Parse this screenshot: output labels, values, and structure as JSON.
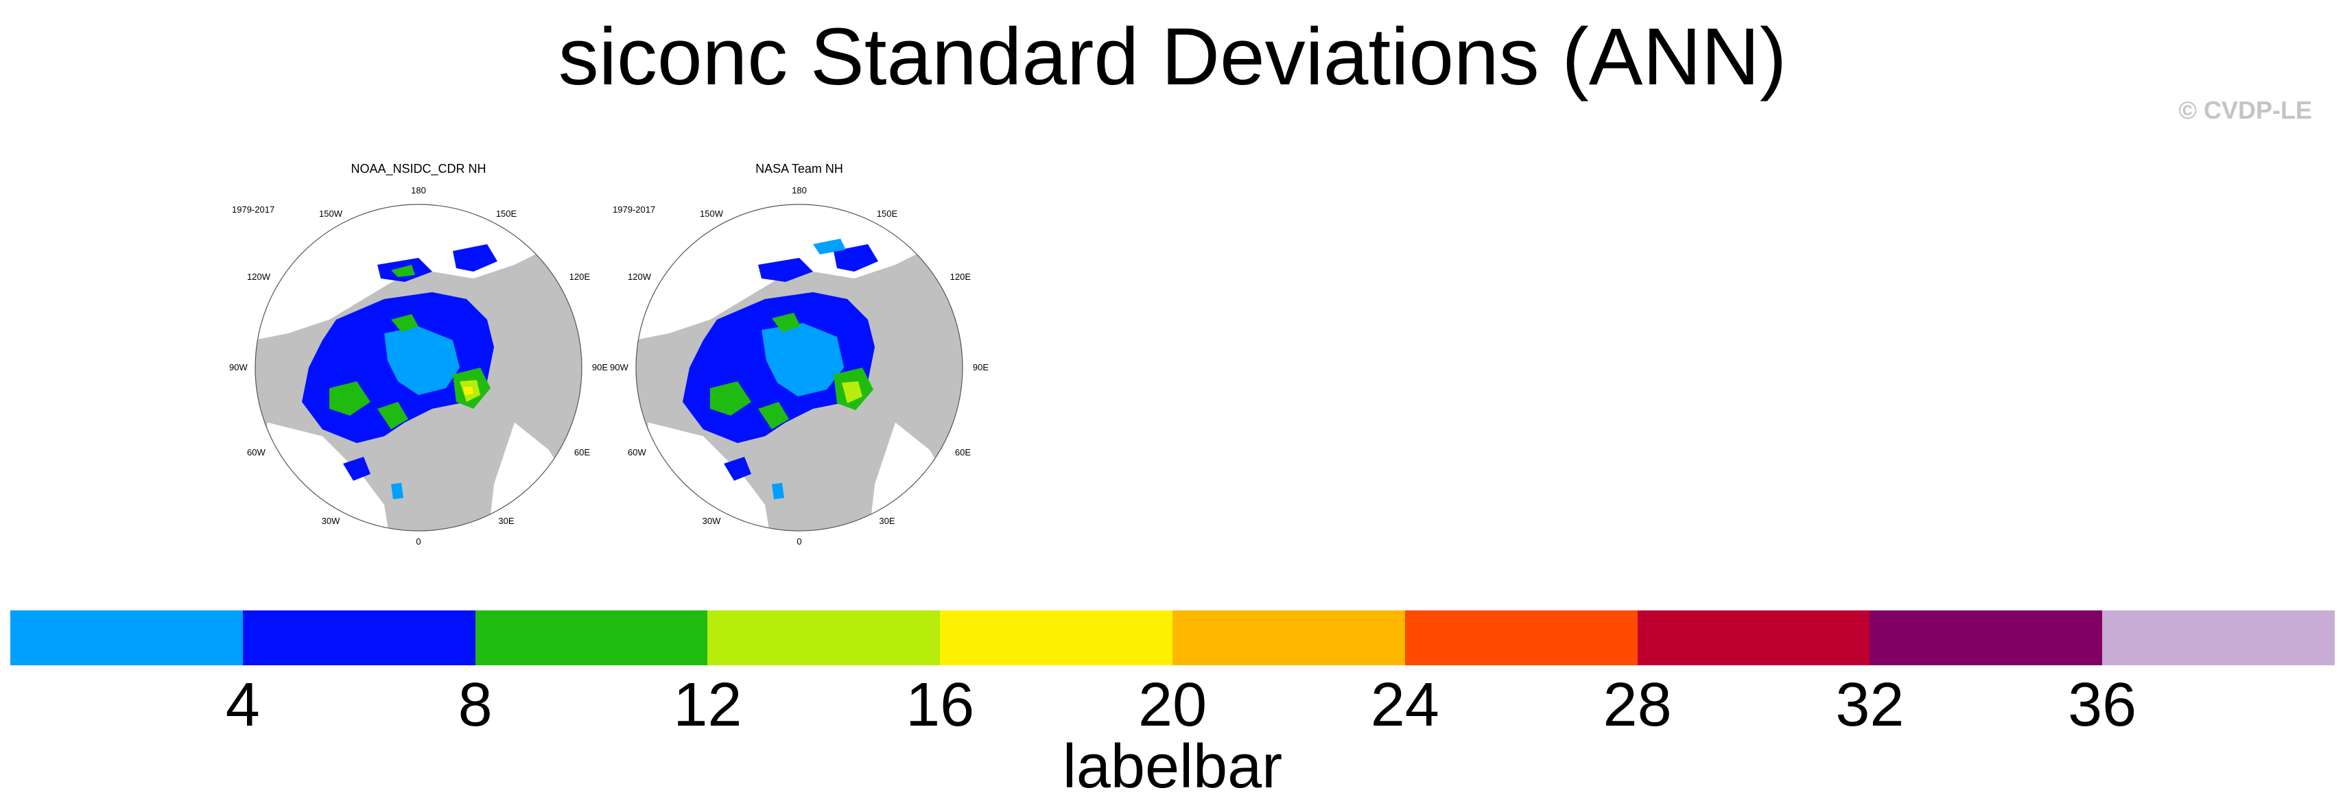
{
  "title": "siconc Standard Deviations (ANN)",
  "credit": "© CVDP-LE",
  "panels": [
    {
      "title": "NOAA_NSIDC_CDR NH",
      "period": "1979-2017"
    },
    {
      "title": "NASA Team NH",
      "period": "1979-2017"
    }
  ],
  "longitude_labels": {
    "top": "180",
    "bottom": "0",
    "left": "90W",
    "right": "90E",
    "upper_left_1": "150W",
    "upper_left_2": "120W",
    "upper_right_1": "150E",
    "upper_right_2": "120E",
    "lower_left_1": "60W",
    "lower_left_2": "30W",
    "lower_right_1": "60E",
    "lower_right_2": "30E"
  },
  "labelbar": {
    "title": "labelbar",
    "ticks": [
      "4",
      "8",
      "12",
      "16",
      "20",
      "24",
      "28",
      "32",
      "36"
    ],
    "colors": [
      "#00a0ff",
      "#0010ff",
      "#20bb10",
      "#b8ec0a",
      "#fff200",
      "#ffb800",
      "#ff4a00",
      "#be0030",
      "#800064",
      "#c8acd6"
    ]
  },
  "colors": {
    "land": "#c0c0c0",
    "ocean": "#ffffff",
    "credit": "#c4c4c4"
  }
}
